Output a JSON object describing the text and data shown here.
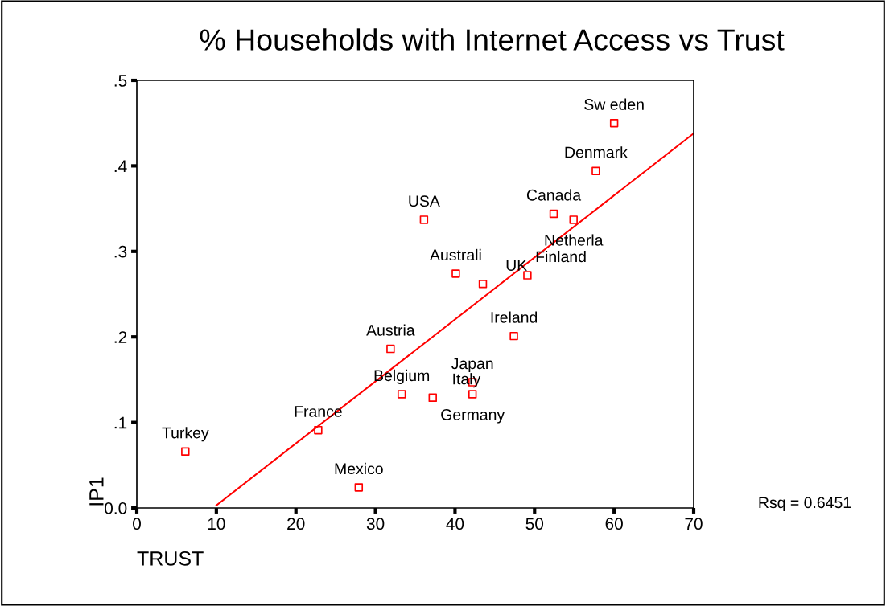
{
  "chart_data": {
    "type": "scatter",
    "title": "% Households with Internet Access vs Trust",
    "xlabel": "TRUST",
    "ylabel": "IP1",
    "x": [
      60.0,
      57.7,
      52.4,
      54.9,
      36.1,
      40.1,
      43.5,
      49.1,
      47.4,
      31.9,
      42.2,
      42.2,
      33.3,
      37.2,
      22.8,
      6.1,
      27.9
    ],
    "series": [
      {
        "color": "#ff0000",
        "marker": "square",
        "values": [
          0.45,
          0.394,
          0.344,
          0.337,
          0.337,
          0.274,
          0.262,
          0.272,
          0.201,
          0.186,
          0.147,
          0.133,
          0.133,
          0.129,
          0.091,
          0.066,
          0.024
        ]
      },
      {
        "type": "line",
        "color": "#ff0000",
        "x": [
          10,
          70
        ],
        "values": [
          0.003,
          0.438
        ]
      }
    ],
    "annotations": [
      {
        "text": "Sw eden",
        "x": 60.0,
        "y": 0.45
      },
      {
        "text": "Denmark",
        "x": 57.7,
        "y": 0.394
      },
      {
        "text": "Canada",
        "x": 52.4,
        "y": 0.344
      },
      {
        "text": "Netherla",
        "x": 54.9,
        "y": 0.337
      },
      {
        "text": "USA",
        "x": 36.1,
        "y": 0.337
      },
      {
        "text": "Australi",
        "x": 40.1,
        "y": 0.274
      },
      {
        "text": "UK",
        "x": 43.5,
        "y": 0.262
      },
      {
        "text": "Finland",
        "x": 49.1,
        "y": 0.272
      },
      {
        "text": "Ireland",
        "x": 47.4,
        "y": 0.201
      },
      {
        "text": "Austria",
        "x": 31.9,
        "y": 0.186
      },
      {
        "text": "Japan",
        "x": 42.2,
        "y": 0.147
      },
      {
        "text": "Germany",
        "x": 42.2,
        "y": 0.133
      },
      {
        "text": "Belgium",
        "x": 33.3,
        "y": 0.133
      },
      {
        "text": "Italy",
        "x": 37.2,
        "y": 0.129
      },
      {
        "text": "France",
        "x": 22.8,
        "y": 0.091
      },
      {
        "text": "Turkey",
        "x": 6.1,
        "y": 0.066
      },
      {
        "text": "Mexico",
        "x": 27.9,
        "y": 0.024
      },
      "Rsq = 0.6451"
    ],
    "xlim": [
      0,
      70
    ],
    "xticks": [
      0,
      10,
      20,
      30,
      40,
      50,
      60,
      70
    ],
    "ylim": [
      0,
      0.5
    ],
    "yticks": [
      {
        "value": 0,
        "label": "0.0"
      },
      {
        "value": 0.1,
        "label": ".1"
      },
      {
        "value": 0.2,
        "label": ".2"
      },
      {
        "value": 0.3,
        "label": ".3"
      },
      {
        "value": 0.4,
        "label": ".4"
      },
      {
        "value": 0.5,
        "label": ".5"
      }
    ],
    "grid": false,
    "legend": false
  }
}
